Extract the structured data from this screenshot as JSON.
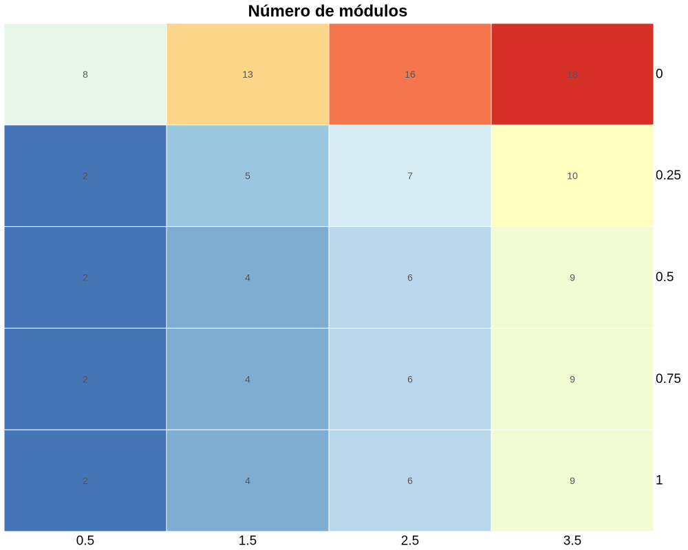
{
  "chart_data": {
    "type": "heatmap",
    "title": "Número de módulos",
    "xlabel": "",
    "ylabel": "",
    "x_categories": [
      "0.5",
      "1.5",
      "2.5",
      "3.5"
    ],
    "y_categories": [
      "0",
      "0.25",
      "0.5",
      "0.75",
      "1"
    ],
    "y_axis_position": "right",
    "values": [
      [
        8,
        13,
        16,
        18
      ],
      [
        2,
        5,
        7,
        10
      ],
      [
        2,
        4,
        6,
        9
      ],
      [
        2,
        4,
        6,
        9
      ],
      [
        2,
        4,
        6,
        9
      ]
    ],
    "value_range": [
      2,
      18
    ],
    "colorscale": [
      "#4575b4",
      "#91bfdb",
      "#e0f3f8",
      "#ffffbf",
      "#fee090",
      "#fc8d59",
      "#d73027"
    ],
    "grid": false,
    "legend": "none"
  }
}
